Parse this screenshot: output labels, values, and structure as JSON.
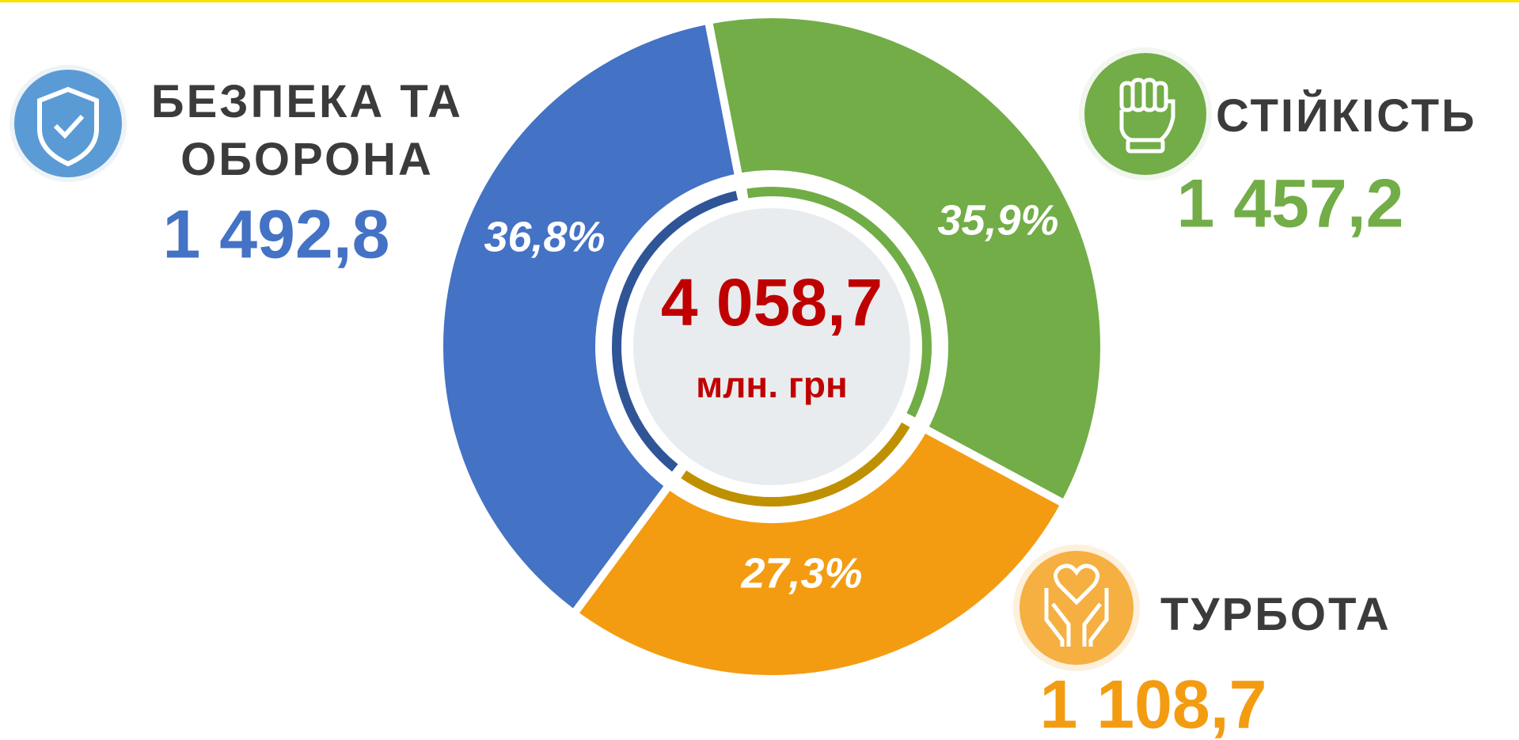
{
  "chart_data": {
    "type": "donut",
    "categories": [
      "БЕЗПЕКА ТА ОБОРОНА",
      "СТІЙКІСТЬ",
      "ТУРБОТА"
    ],
    "values": [
      36.8,
      35.9,
      27.3
    ],
    "value_labels": [
      "36,8%",
      "35,9%",
      "27,3%"
    ],
    "amounts": [
      1492.8,
      1457.2,
      1108.7
    ],
    "amount_labels": [
      "1 492,8",
      "1 457,2",
      "1 108,7"
    ],
    "colors": [
      "#4472c4",
      "#72ad47",
      "#f39c12"
    ],
    "total": 4058.7,
    "total_label": "4 058,7",
    "unit": "млн. грн"
  }
}
